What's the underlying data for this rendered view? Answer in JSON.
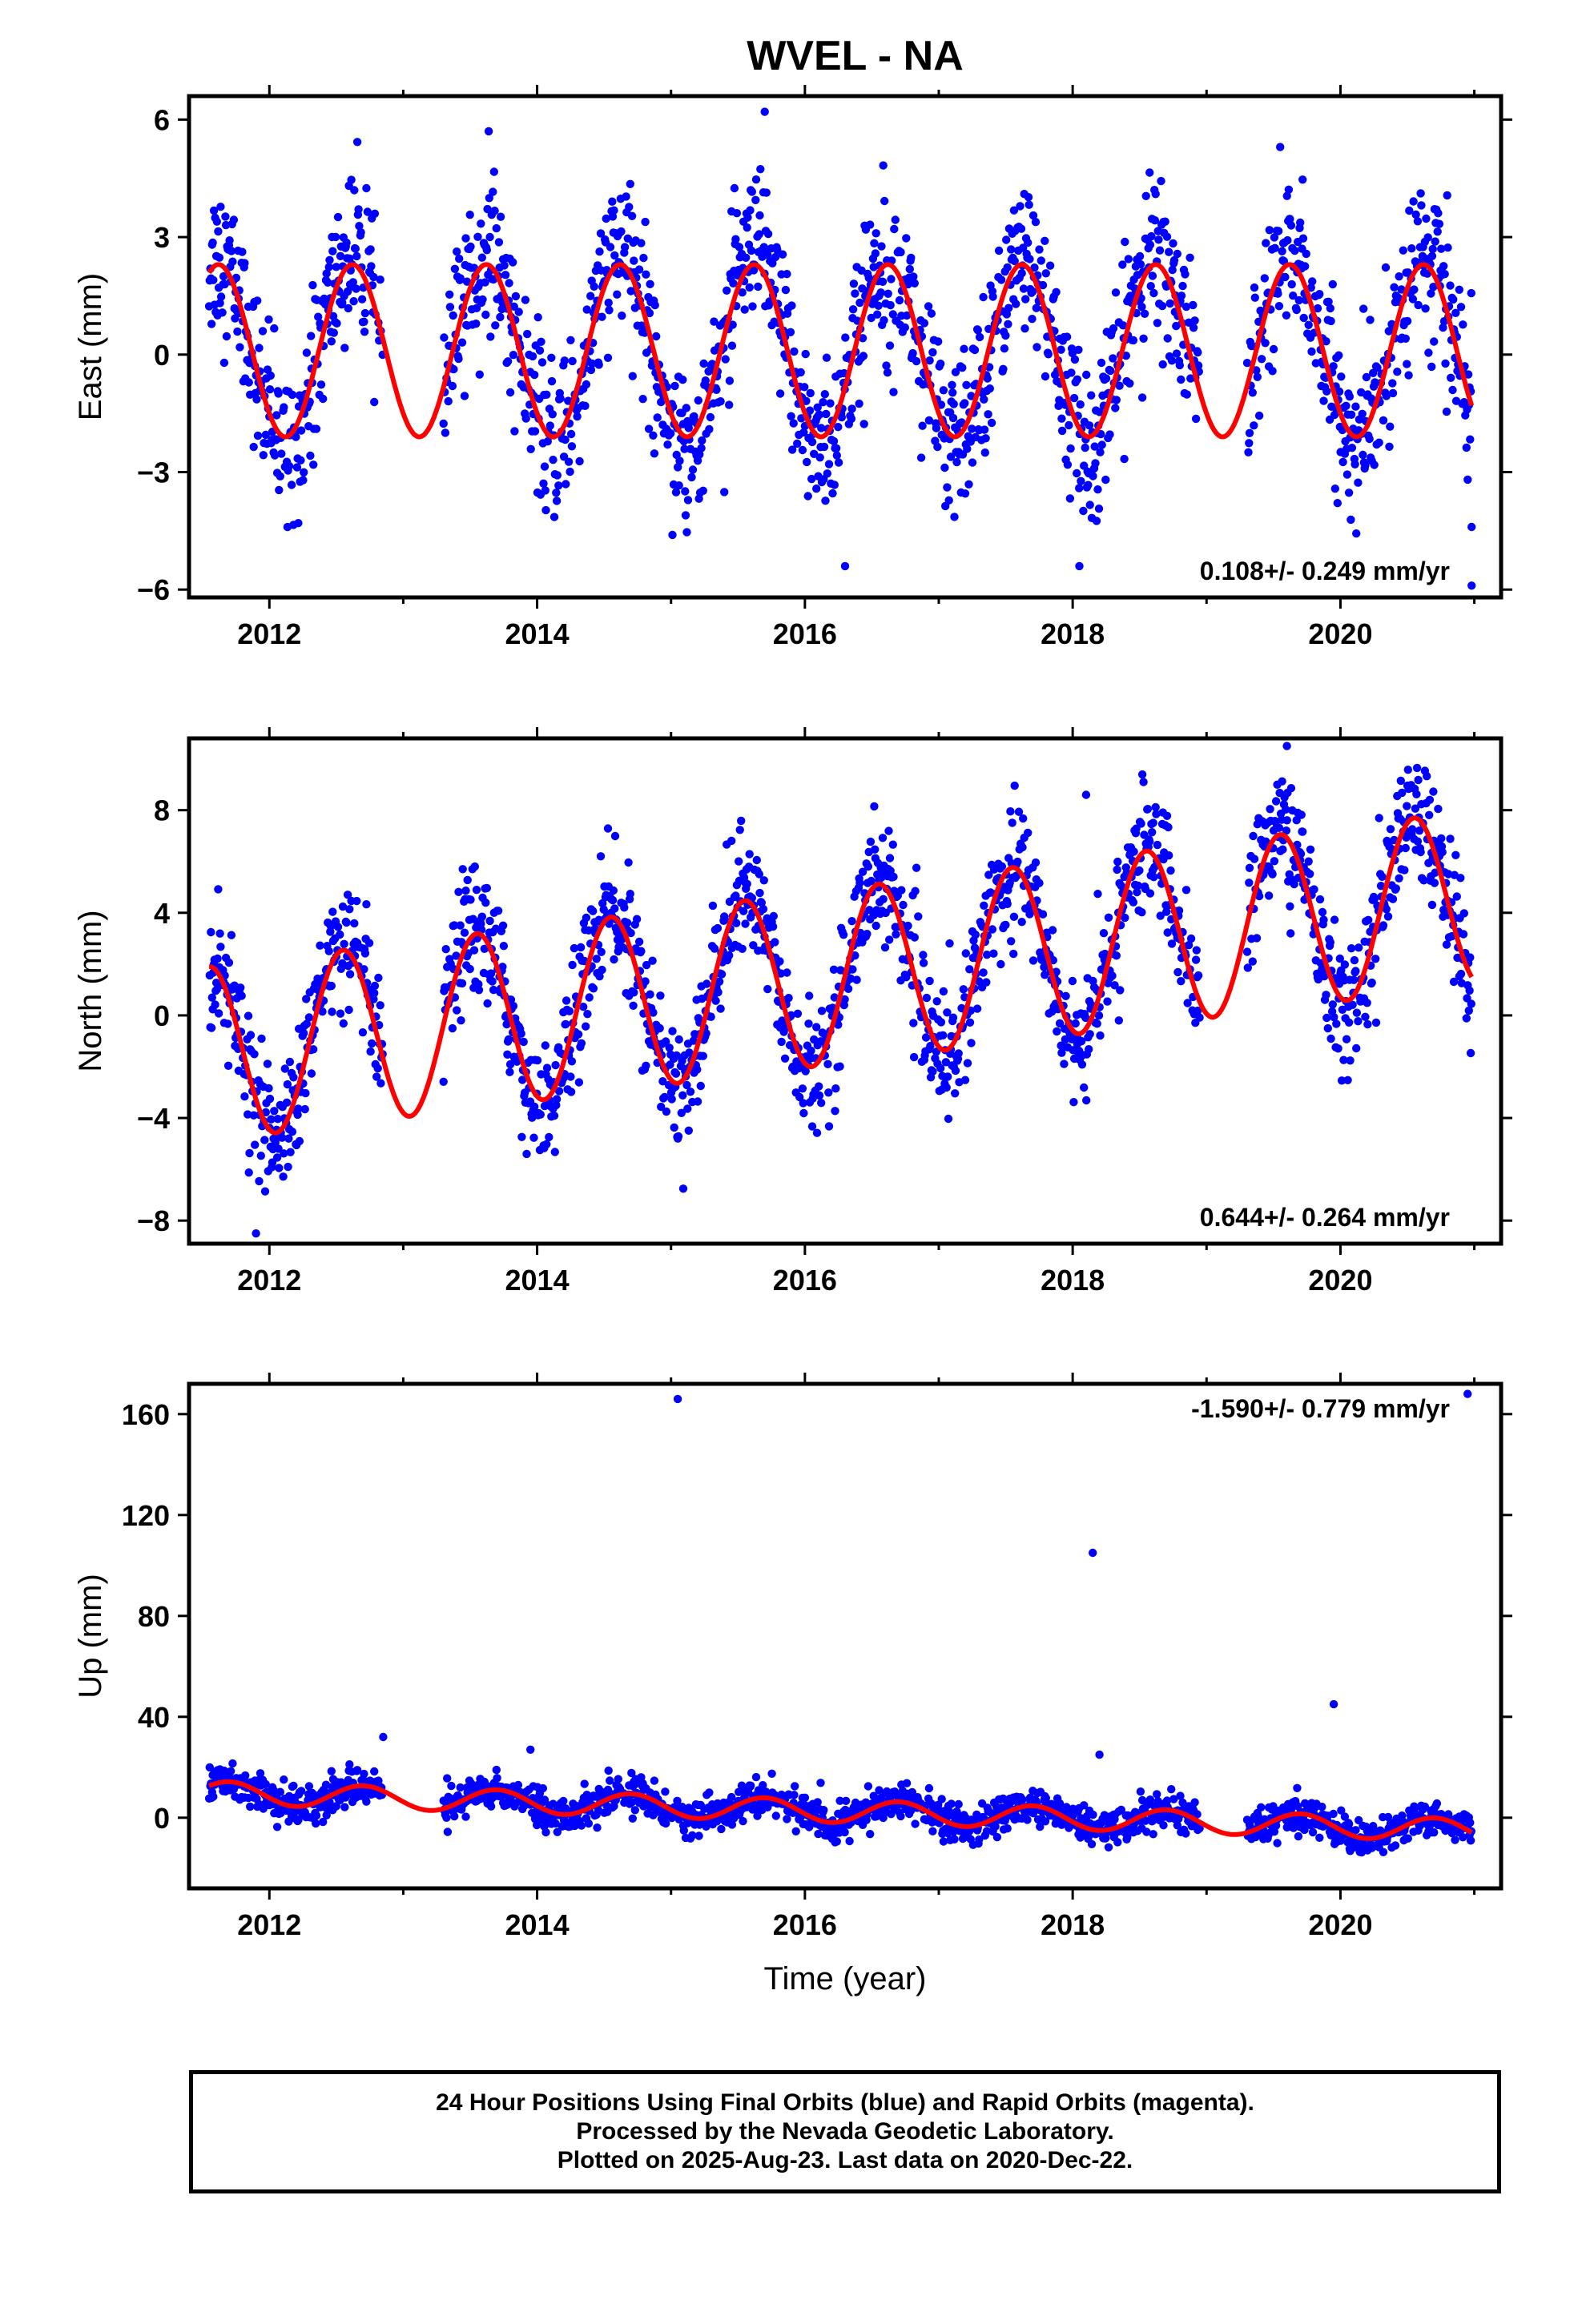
{
  "title": "WVEL - NA",
  "colors": {
    "points": "#0000ff",
    "fit": "#ff0000",
    "frame": "#000000"
  },
  "footer": {
    "line1": "24 Hour Positions Using Final Orbits (blue) and Rapid Orbits (magenta).",
    "line2": "Processed by the Nevada Geodetic Laboratory.",
    "line3": "Plotted on 2025-Aug-23. Last data on 2020-Dec-22."
  },
  "chart_data": [
    {
      "type": "scatter",
      "ylabel": "East (mm)",
      "xlabel": "",
      "xlim": [
        2011.4,
        2021.2
      ],
      "ylim": [
        -6.2,
        6.6
      ],
      "xticks": [
        2012,
        2014,
        2016,
        2018,
        2020
      ],
      "yticks": [
        -6,
        -3,
        0,
        3,
        6
      ],
      "ytick_labels": [
        "−6",
        "−3",
        "0",
        "3",
        "6"
      ],
      "rate_label": "0.108+/- 0.249 mm/yr",
      "rate_position": "bottom-right",
      "series": [
        {
          "kind": "points",
          "mean": 0.1,
          "amplitude": 2.4,
          "phase_peak": 0.62,
          "noise_sd": 1.0,
          "date_range": [
            2011.55,
            2020.98
          ],
          "gaps": [
            [
              2012.85,
              2013.3
            ],
            [
              2018.95,
              2019.3
            ]
          ],
          "outliers": [
            [
              2015.7,
              6.2
            ],
            [
              2019.55,
              5.3
            ],
            [
              2020.98,
              -5.9
            ],
            [
              2020.98,
              -4.4
            ],
            [
              2016.3,
              -5.4
            ],
            [
              2018.05,
              -5.4
            ]
          ]
        },
        {
          "kind": "fit",
          "mean": 0.1,
          "amplitude": 2.2,
          "phase_peak": 0.62
        }
      ]
    },
    {
      "type": "scatter",
      "ylabel": "North (mm)",
      "xlabel": "",
      "xlim": [
        2011.4,
        2021.2
      ],
      "ylim": [
        -8.9,
        10.8
      ],
      "xticks": [
        2012,
        2014,
        2016,
        2018,
        2020
      ],
      "yticks": [
        -8,
        -4,
        0,
        4,
        8
      ],
      "ytick_labels": [
        "−8",
        "−4",
        "0",
        "4",
        "8"
      ],
      "rate_label": "0.644+/- 0.264 mm/yr",
      "rate_position": "bottom-right",
      "series": [
        {
          "kind": "points",
          "start_value": -1.5,
          "rate": 0.644,
          "amplitude": 3.6,
          "phase_peak": 0.55,
          "noise_sd": 1.2,
          "date_range": [
            2011.55,
            2020.98
          ],
          "gaps": [
            [
              2012.85,
              2013.3
            ],
            [
              2018.95,
              2019.3
            ]
          ],
          "outliers": [
            [
              2019.6,
              10.5
            ],
            [
              2011.9,
              -8.5
            ],
            [
              2018.1,
              8.6
            ]
          ]
        },
        {
          "kind": "fit",
          "start_value": -1.5,
          "rate": 0.644,
          "amplitude": 3.4,
          "phase_peak": 0.55
        }
      ]
    },
    {
      "type": "scatter",
      "ylabel": "Up (mm)",
      "xlabel": "Time (year)",
      "xlim": [
        2011.4,
        2021.2
      ],
      "ylim": [
        -28,
        172
      ],
      "xticks": [
        2012,
        2014,
        2016,
        2018,
        2020
      ],
      "yticks": [
        0,
        40,
        80,
        120,
        160
      ],
      "ytick_labels": [
        "0",
        "40",
        "80",
        "120",
        "160"
      ],
      "rate_label": "-1.590+/- 0.779 mm/yr",
      "rate_position": "top-right",
      "series": [
        {
          "kind": "points",
          "start_value": 10,
          "rate": -1.59,
          "amplitude": 4.5,
          "phase_peak": 0.7,
          "noise_sd": 3.5,
          "date_range": [
            2011.55,
            2020.98
          ],
          "gaps": [
            [
              2012.85,
              2013.3
            ],
            [
              2018.95,
              2019.3
            ]
          ],
          "outliers": [
            [
              2015.05,
              166
            ],
            [
              2020.95,
              168
            ],
            [
              2018.15,
              105
            ],
            [
              2019.95,
              45
            ],
            [
              2012.85,
              32
            ],
            [
              2013.95,
              27
            ],
            [
              2018.2,
              25
            ]
          ]
        },
        {
          "kind": "fit",
          "start_value": 10,
          "rate": -1.59,
          "amplitude": 4.5,
          "phase_peak": 0.7
        }
      ]
    }
  ]
}
